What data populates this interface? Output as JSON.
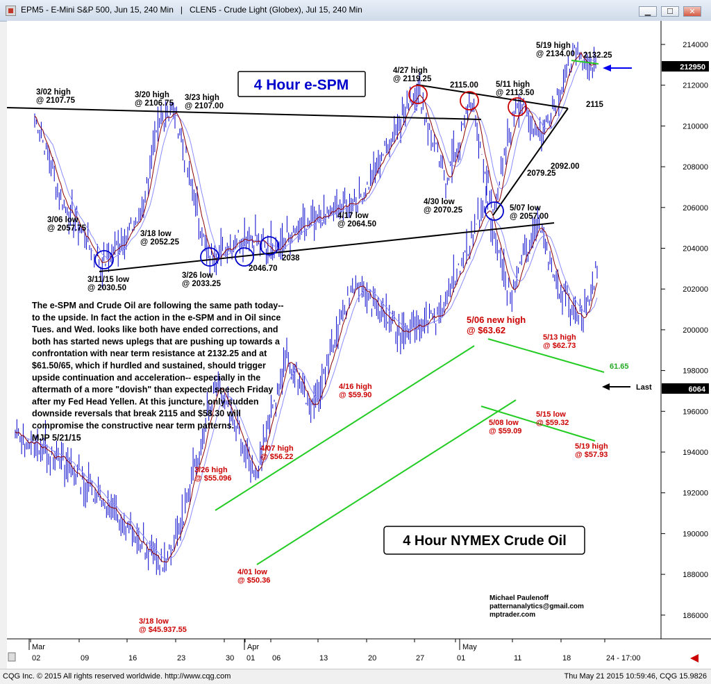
{
  "window": {
    "title": "EPM5 - E-Mini S&P 500, Jun 15, 240 Min   |   CLEN5 - Crude Light (Globex), Jul 15, 240 Min",
    "minimize_label": "▁",
    "maximize_label": "☐",
    "close_label": "✕"
  },
  "colors": {
    "price_bars": "#0000cc",
    "ma_fast": "#8b0000",
    "ma_slow": "#8a8aff",
    "trendline_spx": "#000000",
    "channel_crude": "#22cc22",
    "circle_blue": "#0000cc",
    "circle_red": "#cc0000",
    "annotation_red": "#cc0000",
    "arrow_blue": "#0000ee",
    "price_box": "#000000"
  },
  "titles": {
    "spx": "4 Hour e-SPM",
    "crude": "4 Hour NYMEX Crude Oil"
  },
  "commentary": {
    "lines": [
      "The e-SPM and Crude Oil are following the same path today--",
      "to the upside. In fact the action in the e-SPM and in Oil since",
      "Tues. and Wed. looks like both have ended corrections, and",
      "both has started news uplegs that are pushing up towards a",
      "confrontation with near term resistance at 2132.25 and at",
      "$61.50/65, which if hurdled and sustained, should trigger",
      "upside continuation and acceleration-- especially in the",
      "aftermath of a more \"dovish\" than expected speech Friday",
      "after my Fed Head Yellen. At this juncture, only sudden",
      "downside reversals that break 2115 and $58.30 will",
      "compromise the constructive near term patterns.",
      "MJP 5/21/15"
    ]
  },
  "credits": [
    "Michael Paulenoff",
    "patternanalytics@gmail.com",
    "mptrader.com"
  ],
  "status": {
    "left": "CQG Inc. © 2015 All rights reserved worldwide. http://www.cqg.com",
    "right": "Thu May 21 2015 10:59:46, CQG 15.9826"
  },
  "chart_data": [
    {
      "type": "candlestick",
      "title": "4 Hour e-SPM",
      "symbol": "EPM5 - E-Mini S&P 500, Jun 15, 240 Min",
      "last_price_label": "212950",
      "series": [
        {
          "x": [
            "3/02",
            "3/06",
            "3/11",
            "3/18",
            "3/20",
            "3/23",
            "3/26",
            "4/01",
            "4/06",
            "4/17",
            "4/27",
            "4/30",
            "5/04",
            "5/07",
            "5/11",
            "5/14",
            "5/19",
            "5/21"
          ],
          "values": [
            2105,
            2063,
            2032,
            2054,
            2105,
            2107,
            2034,
            2047,
            2040,
            2066,
            2119,
            2072,
            2113,
            2058,
            2113,
            2095,
            2134,
            2129.5
          ]
        }
      ],
      "annotations": [
        {
          "text": "3/02 high",
          "value": "@ 2107.75"
        },
        {
          "text": "3/06 low",
          "value": "@ 2057.75"
        },
        {
          "text": "3/11/15 low",
          "value": "@ 2030.50"
        },
        {
          "text": "3/18 low",
          "value": "@ 2052.25"
        },
        {
          "text": "3/20 high",
          "value": "@ 2106.75"
        },
        {
          "text": "3/23 high",
          "value": "@ 2107.00"
        },
        {
          "text": "3/26 low",
          "value": "@ 2033.25"
        },
        {
          "text": "2046.70",
          "value": ""
        },
        {
          "text": "2038",
          "value": ""
        },
        {
          "text": "4/17 low",
          "value": "@ 2064.50"
        },
        {
          "text": "4/27 high",
          "value": "@ 2119.25"
        },
        {
          "text": "2115.00",
          "value": ""
        },
        {
          "text": "4/30 low",
          "value": "@ 2070.25"
        },
        {
          "text": "5/07 low",
          "value": "@ 2057.00"
        },
        {
          "text": "5/11 high",
          "value": "@ 2113.50"
        },
        {
          "text": "2079.25",
          "value": ""
        },
        {
          "text": "2092.00",
          "value": ""
        },
        {
          "text": "5/19 high",
          "value": "@ 2134.00"
        },
        {
          "text": "2132.25",
          "value": ""
        },
        {
          "text": "2115",
          "value": ""
        }
      ]
    },
    {
      "type": "candlestick",
      "title": "4 Hour NYMEX Crude Oil",
      "symbol": "CLEN5 - Crude Light (Globex), Jul 15, 240 Min",
      "last_price_label": "6064",
      "last_label": "Last",
      "series": [
        {
          "x": [
            "3/02",
            "3/06",
            "3/11",
            "3/18",
            "3/20",
            "3/26",
            "4/01",
            "4/07",
            "4/13",
            "4/16",
            "4/21",
            "4/27",
            "5/06",
            "5/08",
            "5/13",
            "5/15",
            "5/19",
            "5/21"
          ],
          "values": [
            52.3,
            51.6,
            49.8,
            45.9,
            47.8,
            55.1,
            50.4,
            56.2,
            53.5,
            59.9,
            57.5,
            58.0,
            63.6,
            59.1,
            62.7,
            59.3,
            57.9,
            60.6
          ]
        }
      ],
      "annotations": [
        {
          "text": "3/18 low",
          "value": "@ $45.937.55"
        },
        {
          "text": "3/26 high",
          "value": "@ $55.096"
        },
        {
          "text": "4/01 low",
          "value": "@ $50.36"
        },
        {
          "text": "4/07 high",
          "value": "@ $56.22"
        },
        {
          "text": "4/16 high",
          "value": "@ $59.90"
        },
        {
          "text": "5/06 new high",
          "value": "@ $63.62"
        },
        {
          "text": "5/08 low",
          "value": "@ $59.09"
        },
        {
          "text": "5/13 high",
          "value": "@ $62.73"
        },
        {
          "text": "5/15 low",
          "value": "@ $59.32"
        },
        {
          "text": "5/19 high",
          "value": "@ $57.93"
        },
        {
          "text": "61.65",
          "value": ""
        }
      ]
    }
  ],
  "y_axis": {
    "ticks": [
      "214000",
      "212000",
      "210000",
      "208000",
      "206000",
      "204000",
      "202000",
      "200000",
      "198000",
      "196000",
      "194000",
      "192000",
      "190000",
      "188000",
      "186000"
    ]
  },
  "x_axis": {
    "months": [
      "Mar",
      "Apr",
      "May"
    ],
    "ticks": [
      "02",
      "09",
      "16",
      "23",
      "30",
      "01",
      "06",
      "13",
      "20",
      "27",
      "01",
      "11",
      "18",
      "24 - 17:00"
    ]
  }
}
